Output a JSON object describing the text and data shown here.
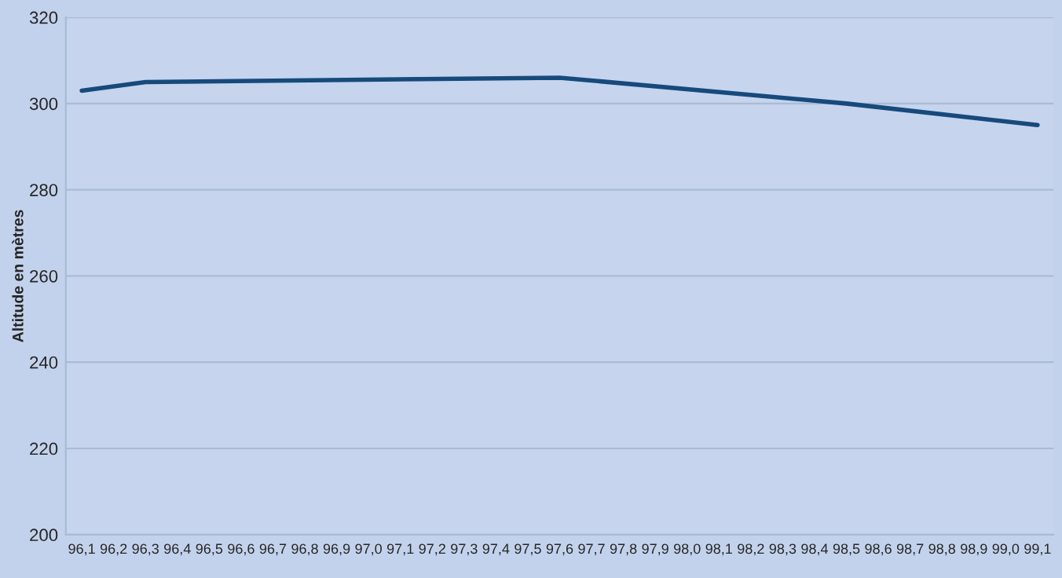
{
  "chart_data": {
    "type": "line",
    "ylabel": "Altitude en mètres",
    "series": [
      {
        "color": "#174a7c",
        "x": [
          96.1,
          96.3,
          97.6,
          98.5,
          99.1
        ],
        "values": [
          303,
          305,
          306,
          300,
          295
        ]
      }
    ],
    "xlim": [
      96.05,
      99.15
    ],
    "xticks": [
      {
        "value": 96.1,
        "label": "96,1"
      },
      {
        "value": 96.2,
        "label": "96,2"
      },
      {
        "value": 96.3,
        "label": "96,3"
      },
      {
        "value": 96.4,
        "label": "96,4"
      },
      {
        "value": 96.5,
        "label": "96,5"
      },
      {
        "value": 96.6,
        "label": "96,6"
      },
      {
        "value": 96.7,
        "label": "96,7"
      },
      {
        "value": 96.8,
        "label": "96,8"
      },
      {
        "value": 96.9,
        "label": "96,9"
      },
      {
        "value": 97.0,
        "label": "97,0"
      },
      {
        "value": 97.1,
        "label": "97,1"
      },
      {
        "value": 97.2,
        "label": "97,2"
      },
      {
        "value": 97.3,
        "label": "97,3"
      },
      {
        "value": 97.4,
        "label": "97,4"
      },
      {
        "value": 97.5,
        "label": "97,5"
      },
      {
        "value": 97.6,
        "label": "97,6"
      },
      {
        "value": 97.7,
        "label": "97,7"
      },
      {
        "value": 97.8,
        "label": "97,8"
      },
      {
        "value": 97.9,
        "label": "97,9"
      },
      {
        "value": 98.0,
        "label": "98,0"
      },
      {
        "value": 98.1,
        "label": "98,1"
      },
      {
        "value": 98.2,
        "label": "98,2"
      },
      {
        "value": 98.3,
        "label": "98,3"
      },
      {
        "value": 98.4,
        "label": "98,4"
      },
      {
        "value": 98.5,
        "label": "98,5"
      },
      {
        "value": 98.6,
        "label": "98,6"
      },
      {
        "value": 98.7,
        "label": "98,7"
      },
      {
        "value": 98.8,
        "label": "98,8"
      },
      {
        "value": 98.9,
        "label": "98,9"
      },
      {
        "value": 99.0,
        "label": "99,0"
      },
      {
        "value": 99.1,
        "label": "99,1"
      }
    ],
    "ylim": [
      200,
      320
    ],
    "yticks": [
      200,
      220,
      240,
      260,
      280,
      300,
      320
    ],
    "grid": "y",
    "legend": false,
    "marker": "none",
    "line_style": "solid"
  }
}
